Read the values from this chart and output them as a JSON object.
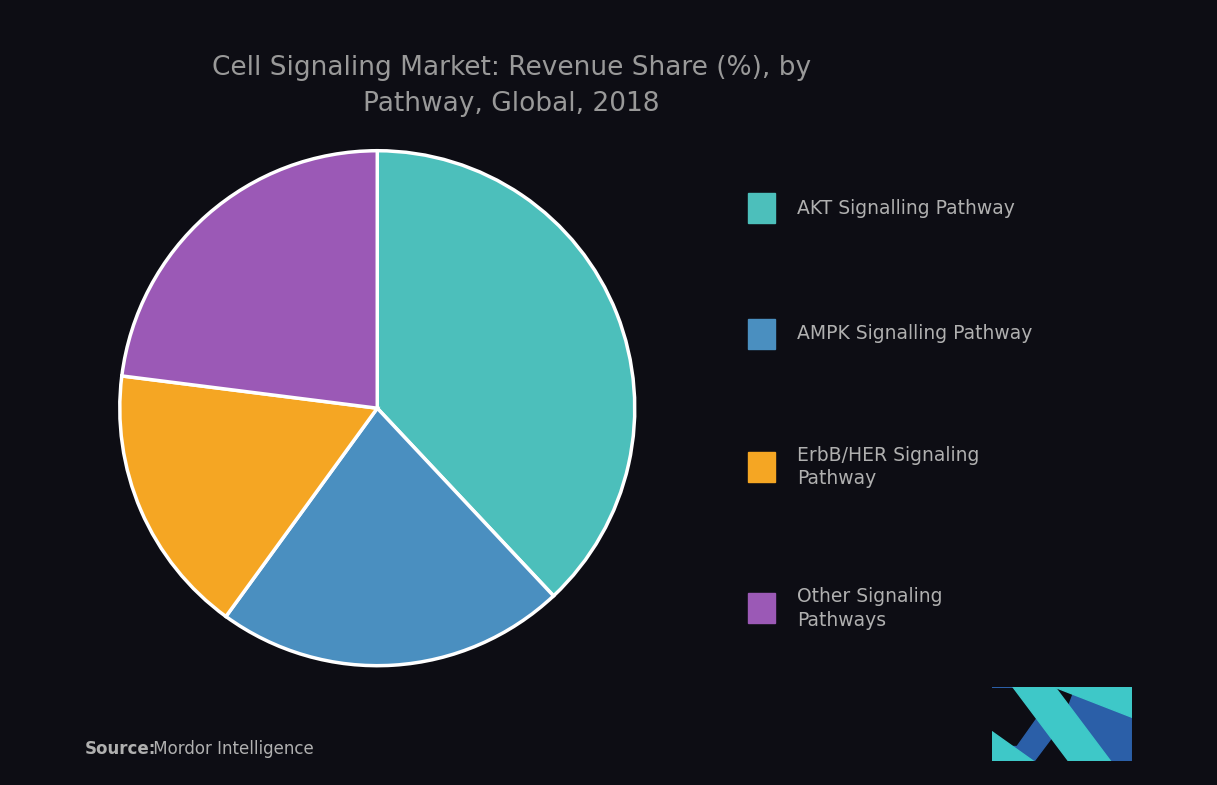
{
  "title": "Cell Signaling Market: Revenue Share (%), by\nPathway, Global, 2018",
  "segments": [
    {
      "label": "AKT Signalling Pathway",
      "value": 38,
      "color": "#4CBFBB"
    },
    {
      "label": "AMPK Signalling Pathway",
      "value": 22,
      "color": "#4A8FC0"
    },
    {
      "label": "ErbB/HER Signaling\nPathway",
      "value": 17,
      "color": "#F5A623"
    },
    {
      "label": "Other Signaling\nPathways",
      "value": 23,
      "color": "#9B59B6"
    }
  ],
  "background_color": "#0d0d14",
  "text_color": "#b0b0b0",
  "title_color": "#999999",
  "source_bold": "Source:",
  "source_normal": " Mordor Intelligence",
  "wedge_linewidth": 2.5,
  "wedge_linecolor": "#ffffff",
  "start_angle": 90,
  "logo_dark_blue": "#2B5FA8",
  "logo_teal": "#3EC8C8"
}
